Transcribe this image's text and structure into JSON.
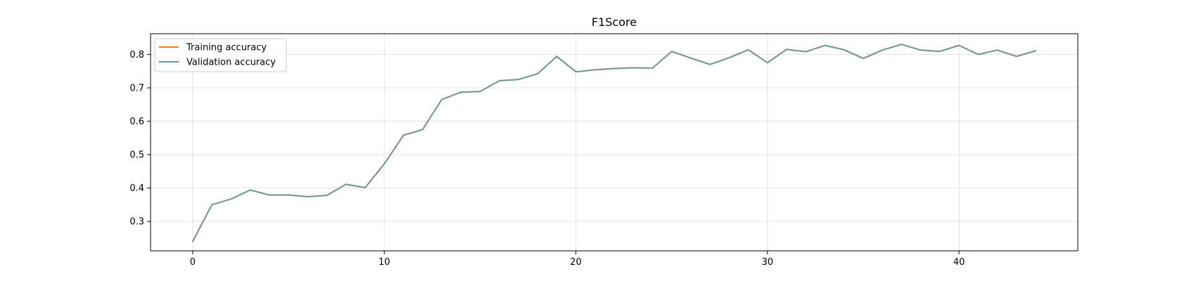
{
  "chart_data": {
    "type": "line",
    "title": "F1Score",
    "xlabel": "",
    "ylabel": "",
    "xlim": [
      -2.2,
      46.2
    ],
    "ylim": [
      0.212,
      0.862
    ],
    "x_ticks": [
      0,
      10,
      20,
      30,
      40
    ],
    "y_ticks": [
      0.3,
      0.4,
      0.5,
      0.6,
      0.7,
      0.8
    ],
    "x_tick_labels": [
      "0",
      "10",
      "20",
      "30",
      "40"
    ],
    "y_tick_labels": [
      "0.3",
      "0.4",
      "0.5",
      "0.6",
      "0.7",
      "0.8"
    ],
    "grid": true,
    "legend_position": "top-left",
    "x": [
      0,
      1,
      2,
      3,
      4,
      5,
      6,
      7,
      8,
      9,
      10,
      11,
      12,
      13,
      14,
      15,
      16,
      17,
      18,
      19,
      20,
      21,
      22,
      23,
      24,
      25,
      26,
      27,
      28,
      29,
      30,
      31,
      32,
      33,
      34,
      35,
      36,
      37,
      38,
      39,
      40,
      41,
      42,
      43,
      44
    ],
    "series": [
      {
        "name": "Training accuracy",
        "color": "#ff7f0e",
        "values": [
          0.24,
          0.35,
          0.367,
          0.394,
          0.379,
          0.379,
          0.374,
          0.378,
          0.411,
          0.401,
          0.472,
          0.558,
          0.575,
          0.665,
          0.687,
          0.689,
          0.721,
          0.725,
          0.742,
          0.794,
          0.748,
          0.754,
          0.758,
          0.76,
          0.759,
          0.809,
          0.789,
          0.77,
          0.79,
          0.814,
          0.775,
          0.815,
          0.808,
          0.827,
          0.814,
          0.788,
          0.813,
          0.83,
          0.813,
          0.809,
          0.827,
          0.8,
          0.813,
          0.794,
          0.811
        ]
      },
      {
        "name": "Validation accuracy",
        "color": "#5f9ea0",
        "values": [
          0.24,
          0.35,
          0.367,
          0.394,
          0.379,
          0.379,
          0.374,
          0.378,
          0.411,
          0.401,
          0.472,
          0.558,
          0.575,
          0.665,
          0.687,
          0.689,
          0.721,
          0.725,
          0.742,
          0.794,
          0.748,
          0.754,
          0.758,
          0.76,
          0.759,
          0.809,
          0.789,
          0.77,
          0.79,
          0.814,
          0.775,
          0.815,
          0.808,
          0.827,
          0.814,
          0.788,
          0.813,
          0.83,
          0.813,
          0.809,
          0.827,
          0.8,
          0.813,
          0.794,
          0.811
        ]
      }
    ]
  }
}
